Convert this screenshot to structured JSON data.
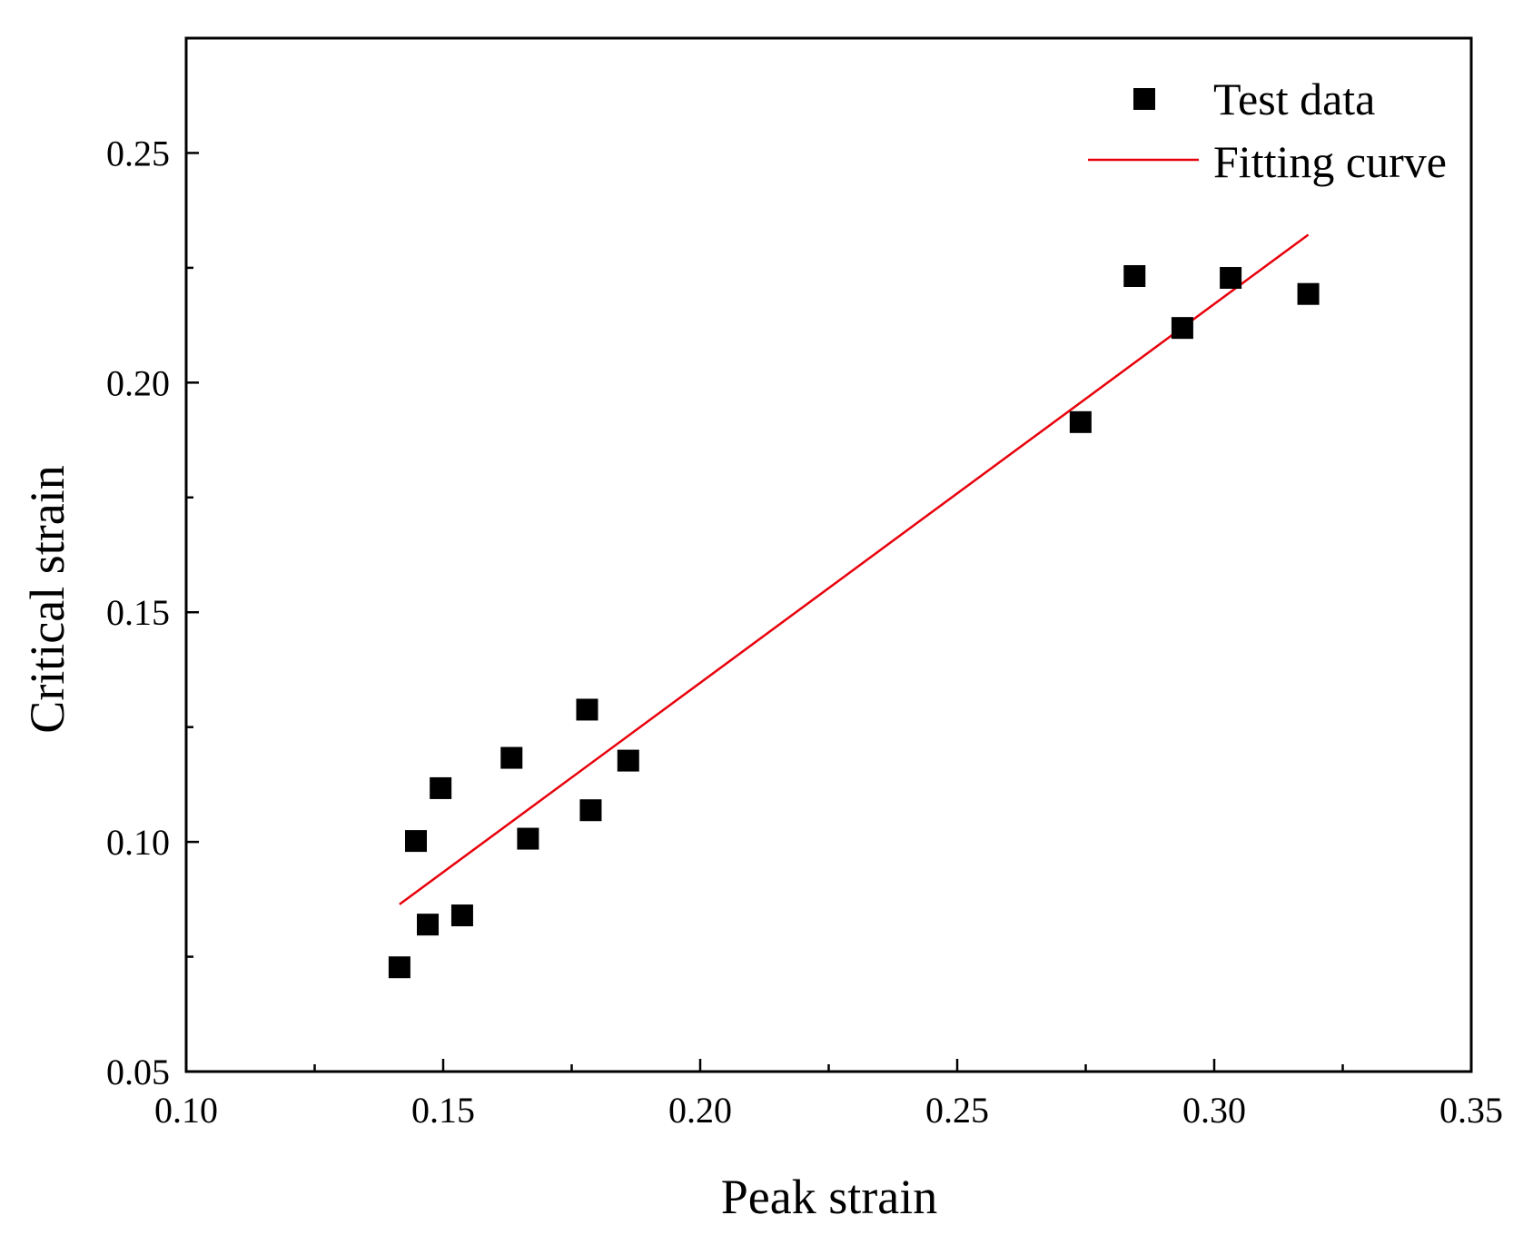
{
  "chart_data": {
    "type": "scatter",
    "title": "",
    "xlabel": "Peak strain",
    "ylabel": "Critical strain",
    "xlim": [
      0.1,
      0.35
    ],
    "ylim": [
      0.05,
      0.275
    ],
    "x_ticks": [
      0.1,
      0.15,
      0.2,
      0.25,
      0.3,
      0.35
    ],
    "x_tick_labels": [
      "0.10",
      "0.15",
      "0.20",
      "0.25",
      "0.30",
      "0.35"
    ],
    "x_minor_ticks": [
      0.125,
      0.175,
      0.225,
      0.275,
      0.325
    ],
    "y_ticks": [
      0.05,
      0.1,
      0.15,
      0.2,
      0.25
    ],
    "y_tick_labels": [
      "0.05",
      "0.10",
      "0.15",
      "0.20",
      "0.25"
    ],
    "y_minor_ticks": [
      0.075,
      0.125,
      0.175,
      0.225
    ],
    "grid": false,
    "legend_position": "top-right",
    "series": [
      {
        "name": "Test data",
        "kind": "scatter",
        "marker": "square",
        "color": "#000000",
        "points": [
          [
            0.1415,
            0.0727
          ],
          [
            0.1447,
            0.1002
          ],
          [
            0.147,
            0.082
          ],
          [
            0.1495,
            0.1117
          ],
          [
            0.1537,
            0.084
          ],
          [
            0.1633,
            0.1183
          ],
          [
            0.1665,
            0.1007
          ],
          [
            0.178,
            0.1288
          ],
          [
            0.1787,
            0.1069
          ],
          [
            0.186,
            0.1177
          ],
          [
            0.274,
            0.1914
          ],
          [
            0.2845,
            0.2232
          ],
          [
            0.2938,
            0.2119
          ],
          [
            0.3032,
            0.2228
          ],
          [
            0.3183,
            0.2193
          ]
        ]
      },
      {
        "name": "Fitting curve",
        "kind": "line",
        "color": "#e8000b",
        "points": [
          [
            0.1415,
            0.0864
          ],
          [
            0.3183,
            0.2322
          ]
        ]
      }
    ]
  }
}
